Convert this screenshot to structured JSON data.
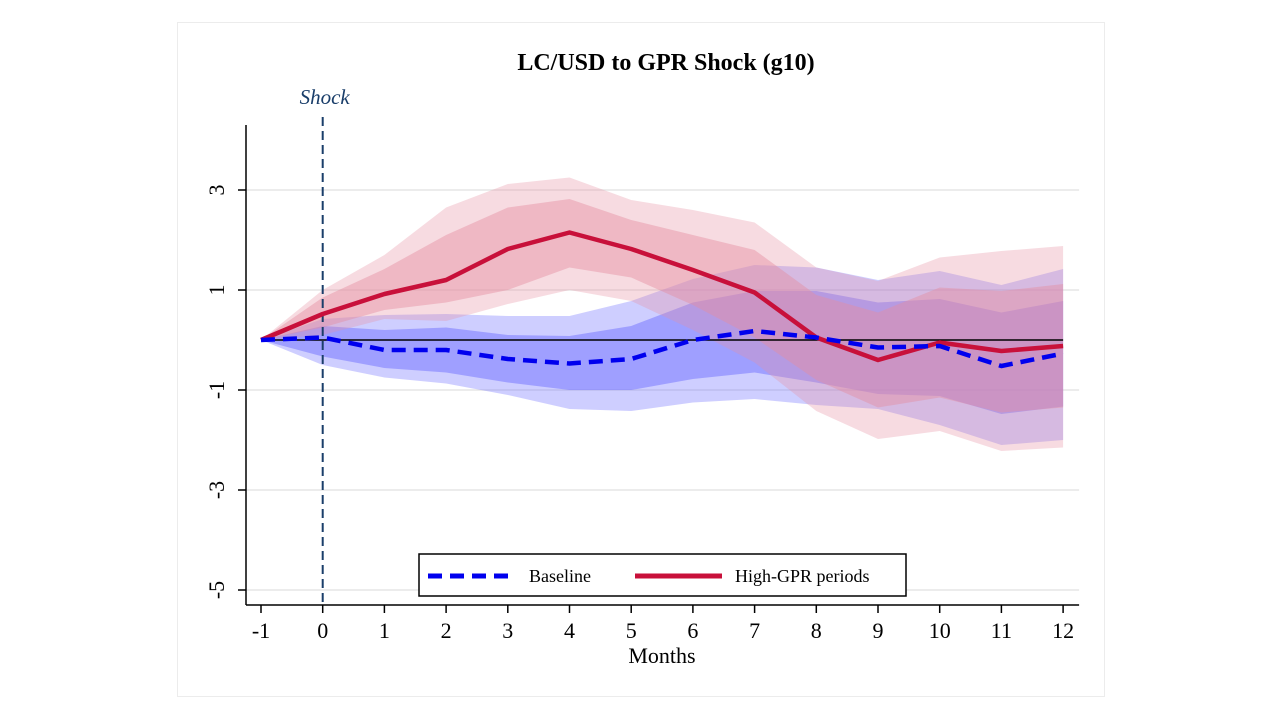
{
  "chart_data": {
    "type": "line",
    "title": "LC/USD to GPR Shock (g10)",
    "xlabel": "Months",
    "ylabel": "",
    "x": [
      -1,
      0,
      1,
      2,
      3,
      4,
      5,
      6,
      7,
      8,
      9,
      10,
      11,
      12
    ],
    "xlim": [
      -1,
      12
    ],
    "ylim": [
      -5.3,
      4.3
    ],
    "yticks": [
      3,
      1,
      -1,
      -3,
      -5
    ],
    "xticks": [
      -1,
      0,
      1,
      2,
      3,
      4,
      5,
      6,
      7,
      8,
      9,
      10,
      11,
      12
    ],
    "shock": {
      "x": 0,
      "label": "Shock"
    },
    "series": [
      {
        "name": "Baseline",
        "color": "#0000ee",
        "style": "dashed",
        "band_color": "#6666ff",
        "values": [
          0,
          0.05,
          -0.2,
          -0.2,
          -0.38,
          -0.47,
          -0.38,
          0,
          0.18,
          0.05,
          -0.15,
          -0.12,
          -0.52,
          -0.27
        ],
        "ci90_lower": [
          0,
          -0.5,
          -0.75,
          -0.87,
          -1.1,
          -1.38,
          -1.42,
          -1.25,
          -1.18,
          -1.3,
          -1.38,
          -1.7,
          -2.1,
          -2.0
        ],
        "ci90_upper": [
          0,
          0.42,
          0.5,
          0.52,
          0.48,
          0.48,
          0.78,
          1.22,
          1.5,
          1.45,
          1.2,
          1.38,
          1.1,
          1.42
        ],
        "ci68_lower": [
          0,
          -0.33,
          -0.56,
          -0.65,
          -0.85,
          -1.0,
          -1.0,
          -0.78,
          -0.65,
          -0.85,
          -1.08,
          -1.12,
          -1.48,
          -1.33
        ],
        "ci68_upper": [
          0,
          0.28,
          0.2,
          0.25,
          0.1,
          0.08,
          0.28,
          0.75,
          0.98,
          0.98,
          0.75,
          0.82,
          0.55,
          0.78
        ]
      },
      {
        "name": "High-GPR periods",
        "color": "#c8103a",
        "style": "solid",
        "band_color": "#e58ea2",
        "values": [
          0,
          0.52,
          0.92,
          1.2,
          1.82,
          2.15,
          1.82,
          1.4,
          0.95,
          0.05,
          -0.4,
          -0.05,
          -0.22,
          -0.12
        ],
        "ci90_lower": [
          0,
          0.1,
          0.42,
          0.38,
          0.72,
          1.0,
          0.78,
          0.2,
          -0.45,
          -1.42,
          -1.98,
          -1.82,
          -2.22,
          -2.15
        ],
        "ci90_upper": [
          0,
          1.0,
          1.7,
          2.65,
          3.12,
          3.25,
          2.8,
          2.6,
          2.35,
          1.45,
          1.18,
          1.65,
          1.78,
          1.88
        ],
        "ci68_lower": [
          0,
          0.25,
          0.6,
          0.75,
          1.0,
          1.45,
          1.25,
          0.7,
          0.05,
          -0.8,
          -1.35,
          -1.15,
          -1.45,
          -1.35
        ],
        "ci68_upper": [
          0,
          0.85,
          1.42,
          2.1,
          2.65,
          2.82,
          2.4,
          2.1,
          1.8,
          0.9,
          0.55,
          1.05,
          0.98,
          1.12
        ]
      }
    ],
    "legend_position": "bottom-center"
  }
}
